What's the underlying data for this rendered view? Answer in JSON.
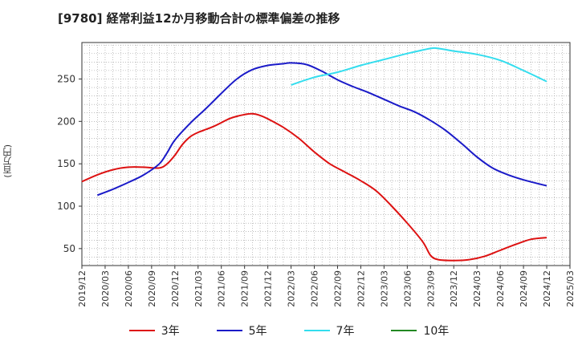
{
  "header": {
    "title": "[9780]  経常利益12か月移動合計の標準偏差の推移"
  },
  "axis": {
    "y_unit": "(百万円)"
  },
  "legend": [
    {
      "label": "3年",
      "color": "#dd1111"
    },
    {
      "label": "5年",
      "color": "#1a1ac8"
    },
    {
      "label": "7年",
      "color": "#33ddee"
    },
    {
      "label": "10年",
      "color": "#228822"
    }
  ],
  "chart_data": {
    "type": "line",
    "title": "[9780]  経常利益12か月移動合計の標準偏差の推移",
    "ylabel": "(百万円)",
    "xlabel": "",
    "x_ticks": [
      "2019/12",
      "2020/03",
      "2020/06",
      "2020/09",
      "2020/12",
      "2021/03",
      "2021/06",
      "2021/09",
      "2021/12",
      "2022/03",
      "2022/06",
      "2022/09",
      "2022/12",
      "2023/03",
      "2023/06",
      "2023/09",
      "2023/12",
      "2024/03",
      "2024/06",
      "2024/09",
      "2024/12",
      "2025/03"
    ],
    "y_ticks": [
      50,
      100,
      150,
      200,
      250
    ],
    "ylim": [
      30,
      293
    ],
    "xlim": [
      "2019/12",
      "2025/03"
    ],
    "grid": true,
    "legend_position": "bottom",
    "series": [
      {
        "name": "3年",
        "color": "#dd1111",
        "points": [
          [
            "2019/12",
            129
          ],
          [
            "2020/02",
            137
          ],
          [
            "2020/04",
            143
          ],
          [
            "2020/06",
            146
          ],
          [
            "2020/08",
            146
          ],
          [
            "2020/10",
            145
          ],
          [
            "2020/11",
            150
          ],
          [
            "2020/12",
            160
          ],
          [
            "2021/01",
            173
          ],
          [
            "2021/02",
            182
          ],
          [
            "2021/03",
            187
          ],
          [
            "2021/05",
            194
          ],
          [
            "2021/07",
            203
          ],
          [
            "2021/08",
            206
          ],
          [
            "2021/09",
            208
          ],
          [
            "2021/10",
            209
          ],
          [
            "2021/11",
            207
          ],
          [
            "2021/12",
            203
          ],
          [
            "2022/02",
            193
          ],
          [
            "2022/04",
            180
          ],
          [
            "2022/06",
            164
          ],
          [
            "2022/08",
            150
          ],
          [
            "2022/10",
            140
          ],
          [
            "2022/12",
            130
          ],
          [
            "2023/02",
            118
          ],
          [
            "2023/04",
            100
          ],
          [
            "2023/06",
            80
          ],
          [
            "2023/08",
            58
          ],
          [
            "2023/09",
            42
          ],
          [
            "2023/10",
            37
          ],
          [
            "2023/12",
            36
          ],
          [
            "2024/02",
            37
          ],
          [
            "2024/04",
            41
          ],
          [
            "2024/06",
            48
          ],
          [
            "2024/08",
            55
          ],
          [
            "2024/10",
            61
          ],
          [
            "2024/12",
            63
          ]
        ]
      },
      {
        "name": "5年",
        "color": "#1a1ac8",
        "points": [
          [
            "2020/02",
            113
          ],
          [
            "2020/04",
            120
          ],
          [
            "2020/06",
            128
          ],
          [
            "2020/08",
            137
          ],
          [
            "2020/10",
            150
          ],
          [
            "2020/11",
            163
          ],
          [
            "2020/12",
            178
          ],
          [
            "2021/02",
            198
          ],
          [
            "2021/04",
            215
          ],
          [
            "2021/06",
            233
          ],
          [
            "2021/08",
            250
          ],
          [
            "2021/10",
            261
          ],
          [
            "2021/12",
            266
          ],
          [
            "2022/02",
            268
          ],
          [
            "2022/03",
            269
          ],
          [
            "2022/05",
            267
          ],
          [
            "2022/07",
            259
          ],
          [
            "2022/09",
            249
          ],
          [
            "2022/11",
            241
          ],
          [
            "2023/01",
            234
          ],
          [
            "2023/03",
            226
          ],
          [
            "2023/05",
            218
          ],
          [
            "2023/07",
            211
          ],
          [
            "2023/09",
            201
          ],
          [
            "2023/11",
            189
          ],
          [
            "2024/01",
            174
          ],
          [
            "2024/03",
            158
          ],
          [
            "2024/05",
            145
          ],
          [
            "2024/07",
            137
          ],
          [
            "2024/09",
            131
          ],
          [
            "2024/12",
            124
          ]
        ]
      },
      {
        "name": "7年",
        "color": "#33ddee",
        "points": [
          [
            "2022/03",
            243
          ],
          [
            "2022/06",
            252
          ],
          [
            "2022/09",
            258
          ],
          [
            "2022/12",
            266
          ],
          [
            "2023/03",
            273
          ],
          [
            "2023/06",
            280
          ],
          [
            "2023/09",
            286
          ],
          [
            "2023/10",
            286
          ],
          [
            "2023/12",
            283
          ],
          [
            "2024/03",
            279
          ],
          [
            "2024/06",
            272
          ],
          [
            "2024/09",
            260
          ],
          [
            "2024/12",
            247
          ]
        ]
      },
      {
        "name": "10年",
        "color": "#228822",
        "points": []
      }
    ]
  }
}
